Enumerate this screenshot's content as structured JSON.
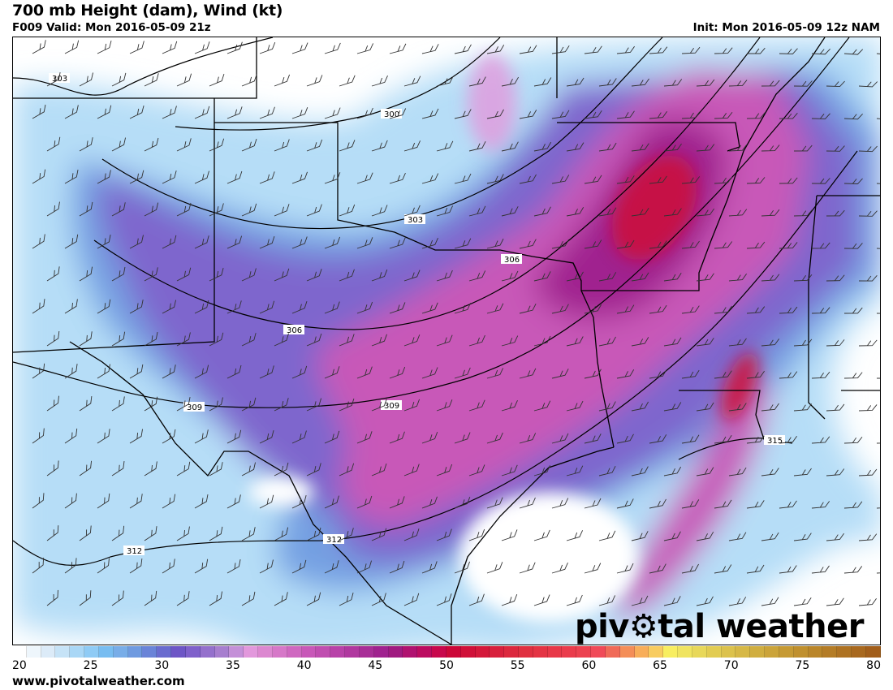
{
  "header": {
    "title": "700 mb Height (dam), Wind (kt)",
    "valid": "F009 Valid: Mon 2016-05-09 21z",
    "init": "Init: Mon 2016-05-09 12z NAM"
  },
  "map": {
    "contour_labels": [
      "303",
      "300",
      "303",
      "306",
      "306",
      "309",
      "309",
      "312",
      "312",
      "315"
    ],
    "logo_text": "pivotal weather",
    "logo_icon": "gear-icon"
  },
  "colorbar": {
    "min": 20,
    "max": 80,
    "ticks": [
      "20",
      "25",
      "30",
      "35",
      "40",
      "45",
      "50",
      "55",
      "60",
      "65",
      "70",
      "75",
      "80"
    ],
    "colors": [
      "#ffffff",
      "#eef6fc",
      "#dcebf8",
      "#c6e3f7",
      "#a9d7f6",
      "#8fcbf5",
      "#78bdf1",
      "#78ade8",
      "#6f9ae0",
      "#6a84d8",
      "#6a6ccf",
      "#6d56c6",
      "#7f61cb",
      "#9470cc",
      "#a77ecf",
      "#c490d8",
      "#e298dc",
      "#dc88d0",
      "#d678c8",
      "#cf68c0",
      "#c858b8",
      "#c04eb0",
      "#b842a8",
      "#b0389f",
      "#a82e97",
      "#a0228f",
      "#a01a80",
      "#b01270",
      "#bc0c60",
      "#c8084c",
      "#cc0838",
      "#d01038",
      "#d4183a",
      "#d8203c",
      "#dc283e",
      "#e03040",
      "#e43444",
      "#e83848",
      "#ea3c4c",
      "#ec4250",
      "#f04a58",
      "#f06a58",
      "#f48e58",
      "#f8ae5a",
      "#f8cc60",
      "#f8ee60",
      "#f0e460",
      "#e8d85a",
      "#e2cc52",
      "#dcc24c",
      "#d6b846",
      "#d0ae40",
      "#cba43a",
      "#c69a34",
      "#c0902e",
      "#ba862a",
      "#b47c26",
      "#ae7222",
      "#a8681e",
      "#a25e1a"
    ]
  },
  "footer": {
    "url": "www.pivotalweather.com"
  }
}
